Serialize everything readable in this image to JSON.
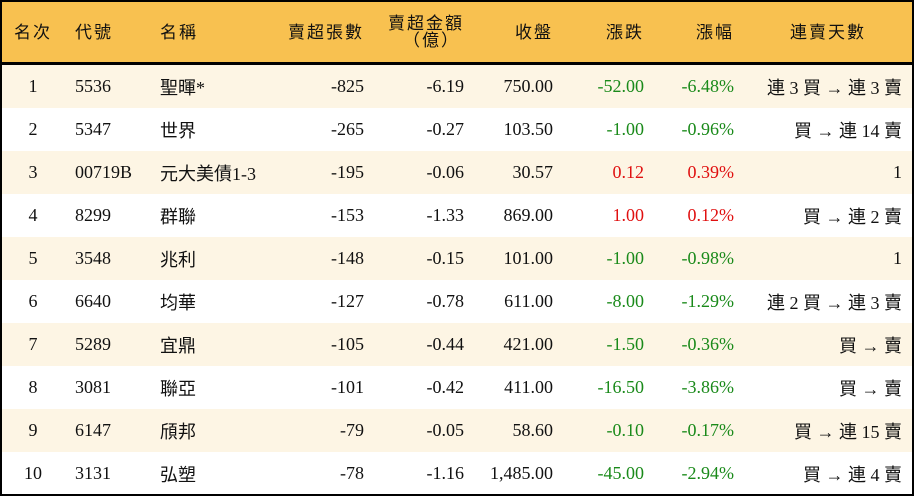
{
  "headers": {
    "rank": "名次",
    "code": "代號",
    "name": "名稱",
    "net_lots": "賣超張數",
    "net_amount_line1": "賣超金額",
    "net_amount_line2": "（億）",
    "close": "收盤",
    "change": "漲跌",
    "pct": "漲幅",
    "streak": "連賣天數"
  },
  "colors": {
    "header_bg": "#F8C150",
    "alt_row_bg": "#FDF5E4",
    "down": "#1a8a1a",
    "up": "#e01010"
  },
  "rows": [
    {
      "rank": "1",
      "code": "5536",
      "name": "聖暉*",
      "net_lots": "-825",
      "net_amount": "-6.19",
      "close": "750.00",
      "change": "-52.00",
      "pct": "-6.48%",
      "dir": "down",
      "streak": "連 3 買 → 連 3 賣"
    },
    {
      "rank": "2",
      "code": "5347",
      "name": "世界",
      "net_lots": "-265",
      "net_amount": "-0.27",
      "close": "103.50",
      "change": "-1.00",
      "pct": "-0.96%",
      "dir": "down",
      "streak": "買 → 連 14 賣"
    },
    {
      "rank": "3",
      "code": "00719B",
      "name": "元大美債1-3",
      "net_lots": "-195",
      "net_amount": "-0.06",
      "close": "30.57",
      "change": "0.12",
      "pct": "0.39%",
      "dir": "up",
      "streak": "1"
    },
    {
      "rank": "4",
      "code": "8299",
      "name": "群聯",
      "net_lots": "-153",
      "net_amount": "-1.33",
      "close": "869.00",
      "change": "1.00",
      "pct": "0.12%",
      "dir": "up",
      "streak": "買 → 連 2 賣"
    },
    {
      "rank": "5",
      "code": "3548",
      "name": "兆利",
      "net_lots": "-148",
      "net_amount": "-0.15",
      "close": "101.00",
      "change": "-1.00",
      "pct": "-0.98%",
      "dir": "down",
      "streak": "1"
    },
    {
      "rank": "6",
      "code": "6640",
      "name": "均華",
      "net_lots": "-127",
      "net_amount": "-0.78",
      "close": "611.00",
      "change": "-8.00",
      "pct": "-1.29%",
      "dir": "down",
      "streak": "連 2 買 → 連 3 賣"
    },
    {
      "rank": "7",
      "code": "5289",
      "name": "宜鼎",
      "net_lots": "-105",
      "net_amount": "-0.44",
      "close": "421.00",
      "change": "-1.50",
      "pct": "-0.36%",
      "dir": "down",
      "streak": "買 → 賣"
    },
    {
      "rank": "8",
      "code": "3081",
      "name": "聯亞",
      "net_lots": "-101",
      "net_amount": "-0.42",
      "close": "411.00",
      "change": "-16.50",
      "pct": "-3.86%",
      "dir": "down",
      "streak": "買 → 賣"
    },
    {
      "rank": "9",
      "code": "6147",
      "name": "頎邦",
      "net_lots": "-79",
      "net_amount": "-0.05",
      "close": "58.60",
      "change": "-0.10",
      "pct": "-0.17%",
      "dir": "down",
      "streak": "買 → 連 15 賣"
    },
    {
      "rank": "10",
      "code": "3131",
      "name": "弘塑",
      "net_lots": "-78",
      "net_amount": "-1.16",
      "close": "1,485.00",
      "change": "-45.00",
      "pct": "-2.94%",
      "dir": "down",
      "streak": "買 → 連 4 賣"
    }
  ]
}
